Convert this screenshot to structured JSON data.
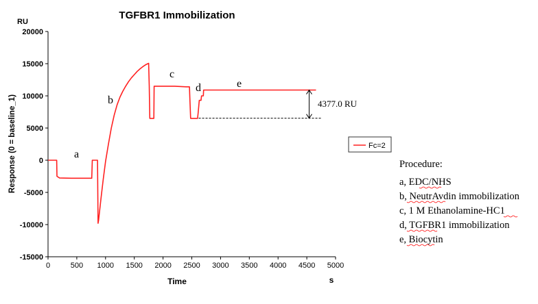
{
  "chart_data": {
    "type": "line",
    "title": "TGFBR1 Immobilization",
    "unit_label": "RU",
    "xlabel": "Time",
    "xunit": "s",
    "ylabel": "Response (0 = baseline_1)",
    "xlim": [
      0,
      5000
    ],
    "ylim": [
      -15000,
      20000
    ],
    "x_ticks": [
      "0",
      "500",
      "1000",
      "1500",
      "2000",
      "2500",
      "3000",
      "3500",
      "4000",
      "4500",
      "5000"
    ],
    "y_ticks": [
      "20000",
      "15000",
      "10000",
      "5000",
      "0",
      "-5000",
      "-10000",
      "-15000"
    ],
    "grid": false,
    "legend_position": "right",
    "series": [
      {
        "name": "Fc=2",
        "color": "#ff2020",
        "points": [
          [
            0,
            0
          ],
          [
            150,
            0
          ],
          [
            155,
            -2500
          ],
          [
            200,
            -2750
          ],
          [
            400,
            -2800
          ],
          [
            600,
            -2800
          ],
          [
            760,
            -2800
          ],
          [
            770,
            0
          ],
          [
            860,
            0
          ],
          [
            870,
            -9800
          ],
          [
            880,
            -9300
          ],
          [
            920,
            -6000
          ],
          [
            960,
            -3000
          ],
          [
            1000,
            -200
          ],
          [
            1050,
            2500
          ],
          [
            1100,
            5000
          ],
          [
            1150,
            7000
          ],
          [
            1200,
            8600
          ],
          [
            1250,
            9800
          ],
          [
            1300,
            10700
          ],
          [
            1350,
            11500
          ],
          [
            1400,
            12200
          ],
          [
            1450,
            12800
          ],
          [
            1500,
            13300
          ],
          [
            1550,
            13800
          ],
          [
            1600,
            14200
          ],
          [
            1650,
            14550
          ],
          [
            1700,
            14850
          ],
          [
            1750,
            15050
          ],
          [
            1760,
            11500
          ],
          [
            1770,
            6500
          ],
          [
            1800,
            6500
          ],
          [
            1840,
            6500
          ],
          [
            1845,
            11500
          ],
          [
            2000,
            11500
          ],
          [
            2200,
            11500
          ],
          [
            2400,
            11400
          ],
          [
            2460,
            11400
          ],
          [
            2465,
            9800
          ],
          [
            2480,
            6500
          ],
          [
            2600,
            6500
          ],
          [
            2610,
            7300
          ],
          [
            2630,
            9300
          ],
          [
            2660,
            9300
          ],
          [
            2670,
            10000
          ],
          [
            2700,
            10000
          ],
          [
            2705,
            10900
          ],
          [
            3000,
            10900
          ],
          [
            3500,
            10900
          ],
          [
            4000,
            10900
          ],
          [
            4660,
            10900
          ]
        ]
      }
    ],
    "segment_labels": [
      "a",
      "b",
      "c",
      "d",
      "e"
    ],
    "annotation": {
      "text": "4377.0 RU",
      "upper": 10900,
      "lower": 6523,
      "x_start": 2620,
      "x_end": 4660
    },
    "procedure": {
      "heading": "Procedure:",
      "items": [
        "a, EDC/NHS",
        "b, NeutrAvdin immobilization",
        "c, 1 M Ethanolamine-HC1",
        "d, TGFBR1 immobilization",
        "e, Biocytin"
      ]
    }
  }
}
